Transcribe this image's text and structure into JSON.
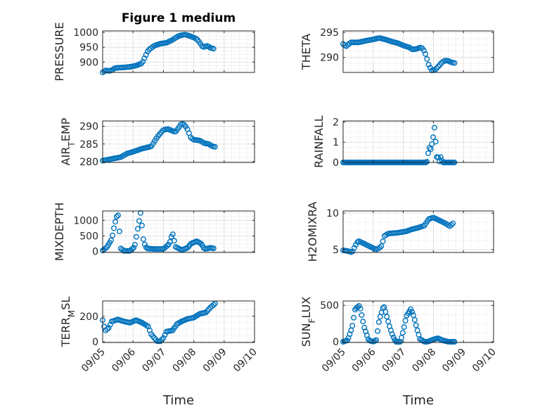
{
  "figure_title": "Figure 1 medium",
  "marker_color": "#0072BD",
  "grid": "on (major and minor, dotted)",
  "chart_data": [
    {
      "type": "scatter",
      "ylabel": "PRESSURE",
      "ylim": [
        865,
        1005
      ],
      "yticks": [
        {
          "v": 900,
          "label": "900"
        },
        {
          "v": 950,
          "label": "950"
        },
        {
          "v": 1000,
          "label": "1000"
        }
      ],
      "xlim": [
        0,
        5
      ],
      "xticks": [
        {
          "v": 0,
          "label": ""
        },
        {
          "v": 1,
          "label": ""
        },
        {
          "v": 2,
          "label": ""
        },
        {
          "v": 3,
          "label": ""
        },
        {
          "v": 4,
          "label": ""
        },
        {
          "v": 5,
          "label": ""
        }
      ],
      "xlabel": "",
      "knots": [
        [
          0.0,
          865
        ],
        [
          0.05,
          868
        ],
        [
          0.1,
          872
        ],
        [
          0.2,
          870
        ],
        [
          0.3,
          872
        ],
        [
          0.4,
          880
        ],
        [
          0.7,
          882
        ],
        [
          0.9,
          884
        ],
        [
          1.1,
          888
        ],
        [
          1.3,
          896
        ],
        [
          1.5,
          940
        ],
        [
          1.7,
          955
        ],
        [
          1.9,
          962
        ],
        [
          2.1,
          965
        ],
        [
          2.3,
          975
        ],
        [
          2.5,
          988
        ],
        [
          2.7,
          993
        ],
        [
          2.9,
          987
        ],
        [
          3.1,
          978
        ],
        [
          3.2,
          965
        ],
        [
          3.3,
          950
        ],
        [
          3.45,
          955
        ],
        [
          3.55,
          948
        ],
        [
          3.65,
          945
        ]
      ],
      "n": 70
    },
    {
      "type": "scatter",
      "ylabel": "THETA",
      "ylim": [
        287,
        295.3
      ],
      "yticks": [
        {
          "v": 290,
          "label": "290"
        },
        {
          "v": 295,
          "label": "295"
        }
      ],
      "xlim": [
        0,
        5
      ],
      "xticks": [
        {
          "v": 0,
          "label": ""
        },
        {
          "v": 1,
          "label": ""
        },
        {
          "v": 2,
          "label": ""
        },
        {
          "v": 3,
          "label": ""
        },
        {
          "v": 4,
          "label": ""
        },
        {
          "v": 5,
          "label": ""
        }
      ],
      "xlabel": "",
      "knots": [
        [
          0.0,
          292.7
        ],
        [
          0.1,
          292.2
        ],
        [
          0.25,
          293.0
        ],
        [
          0.5,
          293.0
        ],
        [
          0.8,
          293.4
        ],
        [
          1.0,
          293.6
        ],
        [
          1.2,
          293.9
        ],
        [
          1.4,
          293.6
        ],
        [
          1.6,
          293.2
        ],
        [
          1.8,
          292.9
        ],
        [
          2.0,
          292.4
        ],
        [
          2.2,
          292.0
        ],
        [
          2.3,
          291.6
        ],
        [
          2.45,
          291.7
        ],
        [
          2.55,
          292.0
        ],
        [
          2.65,
          291.8
        ],
        [
          2.75,
          290.5
        ],
        [
          2.85,
          288.4
        ],
        [
          2.95,
          287.4
        ],
        [
          3.05,
          287.5
        ],
        [
          3.15,
          288.1
        ],
        [
          3.3,
          289.1
        ],
        [
          3.4,
          289.4
        ],
        [
          3.5,
          289.3
        ],
        [
          3.6,
          289.0
        ],
        [
          3.7,
          288.9
        ]
      ],
      "n": 70
    },
    {
      "type": "scatter",
      "ylabel": "AIR_TEMP",
      "ylim": [
        279.8,
        291.5
      ],
      "yticks": [
        {
          "v": 280,
          "label": "280"
        },
        {
          "v": 285,
          "label": "285"
        },
        {
          "v": 290,
          "label": "290"
        }
      ],
      "xlim": [
        0,
        5
      ],
      "xticks": [
        {
          "v": 0,
          "label": ""
        },
        {
          "v": 1,
          "label": ""
        },
        {
          "v": 2,
          "label": ""
        },
        {
          "v": 3,
          "label": ""
        },
        {
          "v": 4,
          "label": ""
        },
        {
          "v": 5,
          "label": ""
        }
      ],
      "xlabel": "",
      "knots": [
        [
          0.0,
          280.3
        ],
        [
          0.3,
          280.8
        ],
        [
          0.6,
          281.3
        ],
        [
          0.8,
          282.3
        ],
        [
          1.0,
          282.8
        ],
        [
          1.3,
          283.7
        ],
        [
          1.6,
          284.3
        ],
        [
          1.8,
          287.0
        ],
        [
          2.0,
          289.0
        ],
        [
          2.15,
          289.2
        ],
        [
          2.3,
          288.7
        ],
        [
          2.4,
          288.4
        ],
        [
          2.5,
          289.6
        ],
        [
          2.6,
          290.8
        ],
        [
          2.7,
          290.4
        ],
        [
          2.8,
          289.0
        ],
        [
          2.9,
          286.8
        ],
        [
          3.0,
          286.2
        ],
        [
          3.2,
          286.0
        ],
        [
          3.35,
          285.2
        ],
        [
          3.5,
          285.0
        ],
        [
          3.6,
          284.4
        ],
        [
          3.7,
          284.2
        ]
      ],
      "n": 70
    },
    {
      "type": "scatter",
      "ylabel": "RAINFALL",
      "ylim": [
        0,
        2.05
      ],
      "yticks": [
        {
          "v": 0,
          "label": "0"
        },
        {
          "v": 1,
          "label": "1"
        },
        {
          "v": 2,
          "label": "2"
        }
      ],
      "xlim": [
        0,
        5
      ],
      "xticks": [
        {
          "v": 0,
          "label": ""
        },
        {
          "v": 1,
          "label": ""
        },
        {
          "v": 2,
          "label": ""
        },
        {
          "v": 3,
          "label": ""
        },
        {
          "v": 4,
          "label": ""
        },
        {
          "v": 5,
          "label": ""
        }
      ],
      "xlabel": "",
      "knots": [
        [
          0.0,
          0
        ],
        [
          2.75,
          0
        ],
        [
          2.8,
          0.05
        ],
        [
          2.85,
          0.8
        ],
        [
          2.9,
          0.6
        ],
        [
          2.95,
          0.9
        ],
        [
          3.0,
          1.3
        ],
        [
          3.05,
          1.9
        ],
        [
          3.1,
          0.25
        ],
        [
          3.15,
          0.3
        ],
        [
          3.2,
          0.05
        ],
        [
          3.25,
          0.3
        ],
        [
          3.3,
          0
        ],
        [
          3.7,
          0
        ]
      ],
      "n": 90
    },
    {
      "type": "scatter",
      "ylabel": "MIXDEPTH",
      "ylim": [
        -30,
        1300
      ],
      "yticks": [
        {
          "v": 0,
          "label": "0"
        },
        {
          "v": 500,
          "label": "500"
        },
        {
          "v": 1000,
          "label": "1000"
        }
      ],
      "xlim": [
        0,
        5
      ],
      "xticks": [
        {
          "v": 0,
          "label": ""
        },
        {
          "v": 1,
          "label": ""
        },
        {
          "v": 2,
          "label": ""
        },
        {
          "v": 3,
          "label": ""
        },
        {
          "v": 4,
          "label": ""
        },
        {
          "v": 5,
          "label": ""
        }
      ],
      "xlabel": "",
      "knots": [
        [
          0.0,
          30
        ],
        [
          0.15,
          150
        ],
        [
          0.3,
          400
        ],
        [
          0.4,
          900
        ],
        [
          0.5,
          1250
        ],
        [
          0.55,
          700
        ],
        [
          0.6,
          100
        ],
        [
          0.7,
          20
        ],
        [
          0.9,
          20
        ],
        [
          1.05,
          150
        ],
        [
          1.15,
          700
        ],
        [
          1.25,
          1250
        ],
        [
          1.35,
          300
        ],
        [
          1.45,
          100
        ],
        [
          1.7,
          80
        ],
        [
          2.0,
          80
        ],
        [
          2.2,
          250
        ],
        [
          2.3,
          600
        ],
        [
          2.4,
          150
        ],
        [
          2.6,
          50
        ],
        [
          2.8,
          120
        ],
        [
          2.9,
          250
        ],
        [
          3.1,
          330
        ],
        [
          3.25,
          250
        ],
        [
          3.35,
          80
        ],
        [
          3.55,
          120
        ],
        [
          3.65,
          100
        ]
      ],
      "n": 80
    },
    {
      "type": "scatter",
      "ylabel": "H2OMIXRA",
      "ylim": [
        4.6,
        10.3
      ],
      "yticks": [
        {
          "v": 5,
          "label": "5"
        },
        {
          "v": 10,
          "label": "10"
        }
      ],
      "xlim": [
        0,
        5
      ],
      "xticks": [
        {
          "v": 0,
          "label": ""
        },
        {
          "v": 1,
          "label": ""
        },
        {
          "v": 2,
          "label": ""
        },
        {
          "v": 3,
          "label": ""
        },
        {
          "v": 4,
          "label": ""
        },
        {
          "v": 5,
          "label": ""
        }
      ],
      "xlabel": "",
      "knots": [
        [
          0.0,
          4.9
        ],
        [
          0.15,
          4.8
        ],
        [
          0.3,
          4.6
        ],
        [
          0.4,
          5.5
        ],
        [
          0.5,
          6.2
        ],
        [
          0.6,
          6.0
        ],
        [
          0.8,
          5.6
        ],
        [
          1.0,
          5.2
        ],
        [
          1.1,
          5.0
        ],
        [
          1.2,
          5.2
        ],
        [
          1.3,
          5.6
        ],
        [
          1.35,
          6.8
        ],
        [
          1.5,
          7.2
        ],
        [
          1.8,
          7.3
        ],
        [
          2.1,
          7.5
        ],
        [
          2.3,
          7.8
        ],
        [
          2.5,
          8.0
        ],
        [
          2.7,
          8.3
        ],
        [
          2.85,
          9.2
        ],
        [
          3.0,
          9.4
        ],
        [
          3.2,
          9.0
        ],
        [
          3.4,
          8.6
        ],
        [
          3.55,
          8.2
        ],
        [
          3.65,
          8.6
        ]
      ],
      "n": 70
    },
    {
      "type": "scatter",
      "ylabel": "TERR_MSL",
      "ylim": [
        -5,
        320
      ],
      "yticks": [
        {
          "v": 0,
          "label": "0"
        },
        {
          "v": 200,
          "label": "200"
        }
      ],
      "xlim": [
        0,
        5
      ],
      "xticks": [
        {
          "v": 0,
          "label": "09/05"
        },
        {
          "v": 1,
          "label": "09/06"
        },
        {
          "v": 2,
          "label": "09/07"
        },
        {
          "v": 3,
          "label": "09/08"
        },
        {
          "v": 4,
          "label": "09/09"
        },
        {
          "v": 5,
          "label": "09/10"
        }
      ],
      "xlabel": "Time",
      "knots": [
        [
          0.0,
          170
        ],
        [
          0.05,
          120
        ],
        [
          0.1,
          90
        ],
        [
          0.2,
          110
        ],
        [
          0.3,
          160
        ],
        [
          0.5,
          175
        ],
        [
          0.7,
          160
        ],
        [
          0.9,
          150
        ],
        [
          1.1,
          170
        ],
        [
          1.3,
          150
        ],
        [
          1.5,
          120
        ],
        [
          1.6,
          60
        ],
        [
          1.7,
          30
        ],
        [
          1.8,
          5
        ],
        [
          1.9,
          5
        ],
        [
          2.0,
          30
        ],
        [
          2.1,
          80
        ],
        [
          2.3,
          90
        ],
        [
          2.45,
          140
        ],
        [
          2.6,
          160
        ],
        [
          2.8,
          180
        ],
        [
          3.0,
          190
        ],
        [
          3.2,
          220
        ],
        [
          3.4,
          230
        ],
        [
          3.55,
          270
        ],
        [
          3.7,
          300
        ]
      ],
      "n": 75
    },
    {
      "type": "scatter",
      "ylabel": "SUN_FLUX",
      "ylim": [
        -10,
        560
      ],
      "yticks": [
        {
          "v": 0,
          "label": "0"
        },
        {
          "v": 500,
          "label": "500"
        }
      ],
      "xlim": [
        0,
        5
      ],
      "xticks": [
        {
          "v": 0,
          "label": "09/05"
        },
        {
          "v": 1,
          "label": "09/06"
        },
        {
          "v": 2,
          "label": "09/07"
        },
        {
          "v": 3,
          "label": "09/08"
        },
        {
          "v": 4,
          "label": "09/09"
        },
        {
          "v": 5,
          "label": "09/10"
        }
      ],
      "xlabel": "Time",
      "knots": [
        [
          0.0,
          0
        ],
        [
          0.15,
          20
        ],
        [
          0.3,
          200
        ],
        [
          0.4,
          450
        ],
        [
          0.55,
          500
        ],
        [
          0.6,
          400
        ],
        [
          0.7,
          200
        ],
        [
          0.85,
          20
        ],
        [
          1.0,
          0
        ],
        [
          1.1,
          20
        ],
        [
          1.2,
          300
        ],
        [
          1.35,
          500
        ],
        [
          1.45,
          350
        ],
        [
          1.55,
          200
        ],
        [
          1.65,
          80
        ],
        [
          1.75,
          0
        ],
        [
          1.9,
          0
        ],
        [
          2.0,
          150
        ],
        [
          2.1,
          350
        ],
        [
          2.25,
          450
        ],
        [
          2.35,
          350
        ],
        [
          2.45,
          180
        ],
        [
          2.55,
          40
        ],
        [
          2.7,
          0
        ],
        [
          2.8,
          0
        ],
        [
          3.0,
          30
        ],
        [
          3.15,
          50
        ],
        [
          3.3,
          20
        ],
        [
          3.5,
          0
        ],
        [
          3.7,
          0
        ]
      ],
      "n": 85
    }
  ]
}
